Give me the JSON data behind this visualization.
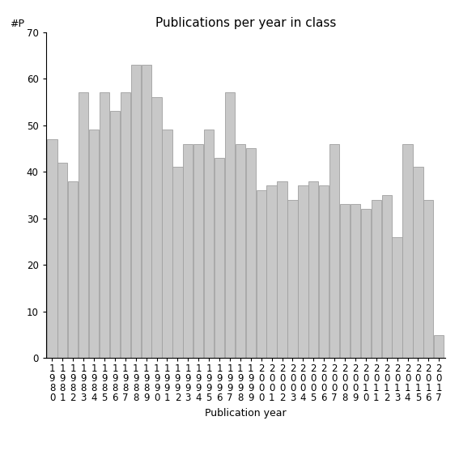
{
  "title": "Publications per year in class",
  "xlabel": "Publication year",
  "ylabel": "#P",
  "years": [
    1980,
    1981,
    1982,
    1983,
    1984,
    1985,
    1986,
    1987,
    1988,
    1989,
    1990,
    1991,
    1992,
    1993,
    1994,
    1995,
    1996,
    1997,
    1998,
    1999,
    2000,
    2001,
    2002,
    2003,
    2004,
    2005,
    2006,
    2007,
    2008,
    2009,
    2010,
    2011,
    2012,
    2013,
    2014,
    2015,
    2016,
    2017
  ],
  "values": [
    47,
    42,
    38,
    57,
    49,
    57,
    53,
    57,
    63,
    63,
    56,
    49,
    41,
    46,
    46,
    49,
    43,
    57,
    46,
    45,
    36,
    37,
    38,
    34,
    37,
    38,
    37,
    46,
    33,
    33,
    32,
    34,
    35,
    26,
    46,
    41,
    34,
    5
  ],
  "bar_color": "#c8c8c8",
  "bar_edge_color": "#a0a0a0",
  "ylim": [
    0,
    70
  ],
  "yticks": [
    0,
    10,
    20,
    30,
    40,
    50,
    60,
    70
  ],
  "background_color": "#ffffff",
  "title_fontsize": 11,
  "axis_label_fontsize": 9,
  "tick_fontsize": 8.5
}
